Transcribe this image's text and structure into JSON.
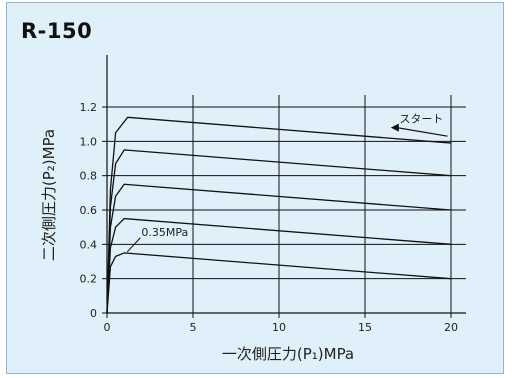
{
  "model": "R-150",
  "chart_data": {
    "type": "line",
    "xlabel": "一次側圧力(P₁)MPa",
    "ylabel": "二次側圧力(P₂)MPa",
    "xlim": [
      0,
      20
    ],
    "ylim": [
      0,
      1.2
    ],
    "x_ticks": [
      "0",
      "5",
      "10",
      "15",
      "20"
    ],
    "y_ticks": [
      "0",
      "0.2",
      "0.4",
      "0.6",
      "0.8",
      "1.0",
      "1.2"
    ],
    "grid": true,
    "series": [
      {
        "points": [
          [
            0,
            0
          ],
          [
            0.2,
            0.27
          ],
          [
            0.5,
            0.33
          ],
          [
            1.0,
            0.35
          ],
          [
            20,
            0.2
          ]
        ]
      },
      {
        "points": [
          [
            0,
            0
          ],
          [
            0.2,
            0.38
          ],
          [
            0.5,
            0.5
          ],
          [
            1.0,
            0.55
          ],
          [
            20,
            0.4
          ]
        ]
      },
      {
        "points": [
          [
            0,
            0
          ],
          [
            0.2,
            0.5
          ],
          [
            0.5,
            0.68
          ],
          [
            1.0,
            0.75
          ],
          [
            20,
            0.6
          ]
        ]
      },
      {
        "points": [
          [
            0,
            0
          ],
          [
            0.2,
            0.62
          ],
          [
            0.5,
            0.87
          ],
          [
            1.0,
            0.95
          ],
          [
            20,
            0.8
          ]
        ]
      },
      {
        "points": [
          [
            0,
            0
          ],
          [
            0.2,
            0.72
          ],
          [
            0.5,
            1.05
          ],
          [
            1.2,
            1.14
          ],
          [
            20,
            0.99
          ]
        ]
      }
    ],
    "annotations": [
      {
        "text": "0.35MPa",
        "x": 2.0,
        "y": 0.45,
        "points_to": [
          1.0,
          0.35
        ]
      },
      {
        "text": "スタート",
        "x": 17.0,
        "y": 1.11,
        "arrow_from": [
          19.8,
          1.03
        ],
        "arrow_to": [
          16.5,
          1.08
        ]
      }
    ]
  }
}
